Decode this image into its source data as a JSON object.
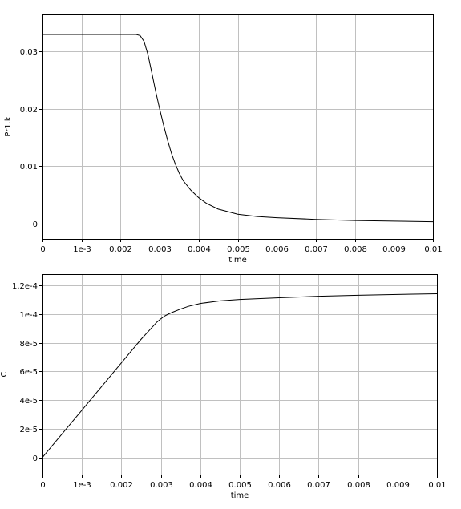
{
  "chart_data": [
    {
      "type": "line",
      "title": "",
      "xlabel": "time",
      "ylabel": "Pr1.k",
      "xlim": [
        0,
        0.01
      ],
      "ylim": [
        -0.0027,
        0.0365
      ],
      "grid": true,
      "x_ticks": [
        {
          "v": 0,
          "label": "0"
        },
        {
          "v": 0.001,
          "label": "1e-3"
        },
        {
          "v": 0.002,
          "label": "0.002"
        },
        {
          "v": 0.003,
          "label": "0.003"
        },
        {
          "v": 0.004,
          "label": "0.004"
        },
        {
          "v": 0.005,
          "label": "0.005"
        },
        {
          "v": 0.006,
          "label": "0.006"
        },
        {
          "v": 0.007,
          "label": "0.007"
        },
        {
          "v": 0.008,
          "label": "0.008"
        },
        {
          "v": 0.009,
          "label": "0.009"
        },
        {
          "v": 0.01,
          "label": "0.01"
        }
      ],
      "y_ticks": [
        {
          "v": 0,
          "label": "0"
        },
        {
          "v": 0.01,
          "label": "0.01"
        },
        {
          "v": 0.02,
          "label": "0.02"
        },
        {
          "v": 0.03,
          "label": "0.03"
        }
      ],
      "series": [
        {
          "x": [
            0,
            0.001,
            0.002,
            0.0024,
            0.0025,
            0.0026,
            0.0027,
            0.0028,
            0.0029,
            0.003,
            0.0031,
            0.0032,
            0.0033,
            0.0034,
            0.0035,
            0.0036,
            0.0038,
            0.004,
            0.0042,
            0.0045,
            0.005,
            0.0055,
            0.006,
            0.007,
            0.008,
            0.009,
            0.01
          ],
          "y": [
            0.033,
            0.033,
            0.033,
            0.033,
            0.0328,
            0.0318,
            0.0295,
            0.0263,
            0.023,
            0.02,
            0.0172,
            0.0146,
            0.0123,
            0.0104,
            0.0088,
            0.0075,
            0.0058,
            0.0045,
            0.0035,
            0.0025,
            0.0016,
            0.0012,
            0.001,
            0.0007,
            0.0005,
            0.0004,
            0.0003
          ]
        }
      ]
    },
    {
      "type": "line",
      "title": "",
      "xlabel": "time",
      "ylabel": "C",
      "xlim": [
        0,
        0.01
      ],
      "ylim": [
        -1.2e-05,
        0.000128
      ],
      "grid": true,
      "x_ticks": [
        {
          "v": 0,
          "label": "0"
        },
        {
          "v": 0.001,
          "label": "1e-3"
        },
        {
          "v": 0.002,
          "label": "0.002"
        },
        {
          "v": 0.003,
          "label": "0.003"
        },
        {
          "v": 0.004,
          "label": "0.004"
        },
        {
          "v": 0.005,
          "label": "0.005"
        },
        {
          "v": 0.006,
          "label": "0.006"
        },
        {
          "v": 0.007,
          "label": "0.007"
        },
        {
          "v": 0.008,
          "label": "0.008"
        },
        {
          "v": 0.009,
          "label": "0.009"
        },
        {
          "v": 0.01,
          "label": "0.01"
        }
      ],
      "y_ticks": [
        {
          "v": 0,
          "label": "0"
        },
        {
          "v": 2e-05,
          "label": "2e-5"
        },
        {
          "v": 4e-05,
          "label": "4e-5"
        },
        {
          "v": 6e-05,
          "label": "6e-5"
        },
        {
          "v": 8e-05,
          "label": "8e-5"
        },
        {
          "v": 0.0001,
          "label": "1e-4"
        },
        {
          "v": 0.00012,
          "label": "1.2e-4"
        }
      ],
      "series": [
        {
          "x": [
            0,
            0.0005,
            0.001,
            0.0015,
            0.002,
            0.0025,
            0.0027,
            0.0029,
            0.003,
            0.0031,
            0.0032,
            0.0033,
            0.0035,
            0.0037,
            0.004,
            0.0045,
            0.005,
            0.006,
            0.007,
            0.008,
            0.009,
            0.01
          ],
          "y": [
            0.0,
            1.65e-05,
            3.3e-05,
            4.95e-05,
            6.6e-05,
            8.25e-05,
            8.85e-05,
            9.45e-05,
            9.68e-05,
            9.88e-05,
            0.0001002,
            0.0001014,
            0.0001036,
            0.0001055,
            0.0001075,
            0.0001093,
            0.0001103,
            0.0001115,
            0.0001125,
            0.0001132,
            0.0001138,
            0.0001143
          ]
        }
      ]
    }
  ]
}
